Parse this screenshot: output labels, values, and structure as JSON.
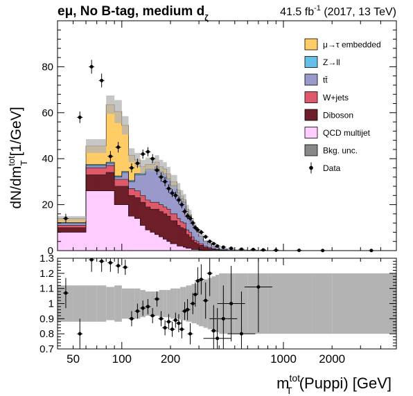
{
  "header": {
    "channel": "eμ, No B-tag, medium d",
    "channel_sub": "ζ",
    "lumi": "41.5 fb",
    "lumi_sup": "-1",
    "lumi_rest": " (2017, 13 TeV)"
  },
  "chart_data": [
    {
      "type": "area",
      "panel": "main (stacked histogram)",
      "ylabel_main": "dN/dm",
      "ylabel_sup": "tot",
      "ylabel_sub": "T",
      "ylabel_unit": " [1/GeV]",
      "xscale": "log",
      "xlim": [
        40,
        5000
      ],
      "ylim": [
        0,
        100
      ],
      "yticks": [
        0,
        20,
        40,
        60,
        80
      ],
      "legend_position": "top-right",
      "bin_edges": [
        40,
        50,
        60,
        70,
        80,
        90,
        100,
        110,
        120,
        130,
        140,
        150,
        160,
        170,
        180,
        190,
        200,
        210,
        220,
        230,
        240,
        250,
        260,
        270,
        280,
        290,
        300,
        320,
        340,
        360,
        380,
        400,
        450,
        500,
        600,
        700,
        800,
        1000,
        1500,
        2000,
        5000
      ],
      "series": [
        {
          "name": "QCD multijet",
          "color": "#ffccff",
          "values": [
            8,
            8,
            26,
            26,
            26,
            20,
            20,
            15,
            14,
            11,
            9,
            8,
            7,
            6,
            5,
            4,
            3,
            3,
            2,
            2,
            1.5,
            1,
            1,
            0.5,
            0.5,
            0.5,
            0.3,
            0.2,
            0.2,
            0.1,
            0.1,
            0,
            0,
            0,
            0,
            0,
            0,
            0,
            0,
            0
          ]
        },
        {
          "name": "Diboson",
          "color": "#6e1e28",
          "values": [
            2,
            2,
            7,
            7,
            8,
            8,
            8,
            9,
            9,
            10,
            10,
            10,
            11,
            11,
            11,
            11,
            10,
            10,
            9,
            8,
            8,
            6,
            5,
            4,
            3,
            2.5,
            2,
            1.2,
            0.8,
            0.5,
            0.3,
            0.2,
            0.1,
            0.1,
            0,
            0,
            0,
            0,
            0,
            0
          ]
        },
        {
          "name": "W+jets",
          "color": "#de5a6a",
          "values": [
            1,
            1,
            3,
            3,
            3,
            3,
            3,
            3,
            3,
            3,
            3,
            3,
            3,
            3,
            3,
            3,
            3,
            3,
            3,
            2.5,
            2.5,
            2,
            2,
            1.5,
            1,
            1,
            0.7,
            0.5,
            0.3,
            0.2,
            0.1,
            0.1,
            0,
            0,
            0,
            0,
            0,
            0,
            0,
            0
          ]
        },
        {
          "name": "tt̄",
          "color": "#9999cc",
          "values": [
            1,
            1,
            1,
            1,
            1,
            1,
            3,
            3,
            7,
            9,
            13,
            14,
            15,
            14,
            14,
            13,
            12,
            12,
            11,
            10,
            9,
            8,
            7,
            6,
            5,
            4,
            3,
            2,
            1.5,
            1,
            0.7,
            0.5,
            0.3,
            0.15,
            0.1,
            0.05,
            0.05,
            0,
            0,
            0
          ]
        },
        {
          "name": "Z→ll",
          "color": "#64c0e8",
          "values": [
            0.3,
            0.3,
            0.5,
            0.5,
            0.5,
            0.5,
            0.5,
            0.5,
            0.5,
            0.5,
            0.5,
            0.5,
            0.5,
            0.5,
            0.5,
            0.4,
            0.4,
            0.4,
            0.4,
            0.3,
            0.3,
            0.3,
            0.2,
            0.2,
            0.2,
            0.1,
            0.1,
            0.1,
            0.1,
            0,
            0,
            0,
            0,
            0,
            0,
            0,
            0,
            0,
            0,
            0
          ]
        },
        {
          "name": "μ→τ embedded",
          "color": "#ffcc66",
          "values": [
            1.7,
            1.7,
            8,
            8,
            25,
            28,
            20,
            11,
            6,
            3,
            2,
            2,
            2,
            2,
            2,
            2,
            1.5,
            1.5,
            1,
            1,
            0.8,
            0.7,
            0.5,
            0.4,
            0.3,
            0.2,
            0.2,
            0.1,
            0.1,
            0.05,
            0.05,
            0,
            0,
            0,
            0,
            0,
            0,
            0,
            0,
            0
          ]
        }
      ],
      "uncertainty": {
        "name": "Bkg. unc.",
        "color": "#b3b3b3",
        "values": [
          1,
          1,
          3,
          3,
          4,
          5,
          4,
          3,
          3,
          3,
          3,
          3,
          3,
          3,
          3,
          3,
          3,
          3,
          3,
          2.5,
          2.5,
          2,
          2,
          1.5,
          1.5,
          1,
          1,
          0.5,
          0.5,
          0.3,
          0.2,
          0.1,
          0.1,
          0.1,
          0.05,
          0.05,
          0.05,
          0.05,
          0.05,
          0.05
        ]
      },
      "data": {
        "name": "Data",
        "points": [
          [
            45,
            14,
            2
          ],
          [
            55,
            58,
            2.5
          ],
          [
            65,
            80,
            3
          ],
          [
            75,
            74,
            3
          ],
          [
            85,
            41,
            2.3
          ],
          [
            95,
            45,
            2.3
          ],
          [
            115,
            36,
            2
          ],
          [
            125,
            38,
            2
          ],
          [
            135,
            42,
            2
          ],
          [
            145,
            43,
            2
          ],
          [
            155,
            40,
            2
          ],
          [
            165,
            35,
            2
          ],
          [
            175,
            32,
            2
          ],
          [
            185,
            30,
            2
          ],
          [
            195,
            27,
            1.8
          ],
          [
            205,
            25,
            1.7
          ],
          [
            215,
            24,
            1.6
          ],
          [
            225,
            22,
            1.6
          ],
          [
            235,
            20,
            1.5
          ],
          [
            245,
            17,
            1.4
          ],
          [
            255,
            15,
            1.3
          ],
          [
            265,
            14,
            1.3
          ],
          [
            275,
            12,
            1.2
          ],
          [
            285,
            10,
            1.1
          ],
          [
            295,
            9,
            1.1
          ],
          [
            310,
            8,
            1
          ],
          [
            330,
            6,
            0.9
          ],
          [
            350,
            4,
            0.8
          ],
          [
            370,
            3,
            0.7
          ],
          [
            390,
            2,
            0.6
          ],
          [
            425,
            1.5,
            0.5
          ],
          [
            475,
            1,
            0.4
          ],
          [
            550,
            0.6,
            0.3
          ],
          [
            650,
            0.5,
            0.2
          ],
          [
            750,
            0.3,
            0.15
          ],
          [
            900,
            0.2,
            0.1
          ],
          [
            1250,
            0.1,
            0.05
          ],
          [
            1750,
            0.05,
            0.03
          ],
          [
            3500,
            0.04,
            0.02
          ]
        ]
      }
    },
    {
      "type": "scatter",
      "panel": "ratio",
      "xlabel_main": "m",
      "xlabel_sup": "tot",
      "xlabel_sub": "T",
      "xlabel_rest": " (Puppi) [GeV]",
      "xscale": "log",
      "xlim": [
        40,
        5000
      ],
      "ylim": [
        0.7,
        1.3
      ],
      "yticks": [
        0.7,
        0.8,
        0.9,
        1.0,
        1.1,
        1.2,
        1.3
      ],
      "ytick_labels": [
        "0.7",
        "0.8",
        "0.9",
        "1",
        "1.1",
        "1.2",
        "1.3"
      ],
      "xticks": [
        100,
        200,
        1000,
        2000
      ],
      "xtick_labels": [
        "100",
        "200",
        "1000",
        "2000"
      ],
      "xtick_extra": [
        {
          "value": 50,
          "label": "50"
        }
      ],
      "band_halfwidth": [
        0.12,
        0.12,
        0.12,
        0.12,
        0.11,
        0.12,
        0.1,
        0.1,
        0.1,
        0.09,
        0.08,
        0.08,
        0.08,
        0.09,
        0.09,
        0.09,
        0.1,
        0.1,
        0.1,
        0.11,
        0.11,
        0.12,
        0.12,
        0.13,
        0.13,
        0.14,
        0.15,
        0.16,
        0.17,
        0.18,
        0.19,
        0.2,
        0.2,
        0.2,
        0.2,
        0.2,
        0.2,
        0.2,
        0.2,
        0.2
      ],
      "points": [
        [
          45,
          1.07,
          0.1,
          0.04
        ],
        [
          55,
          0.8,
          0.1,
          0.01
        ],
        [
          65,
          1.29,
          0.08,
          0.02
        ],
        [
          75,
          1.28,
          0.07,
          0.02
        ],
        [
          85,
          1.27,
          0.06,
          0.02
        ],
        [
          95,
          1.25,
          0.05,
          0.02
        ],
        [
          105,
          1.24,
          0.05,
          0.02
        ],
        [
          115,
          0.9,
          0.05,
          0.02
        ],
        [
          125,
          0.95,
          0.05,
          0.02
        ],
        [
          135,
          0.97,
          0.05,
          0.02
        ],
        [
          145,
          0.98,
          0.05,
          0.02
        ],
        [
          155,
          0.92,
          0.05,
          0.02
        ],
        [
          165,
          1.03,
          0.05,
          0.02
        ],
        [
          175,
          0.9,
          0.05,
          0.02
        ],
        [
          185,
          0.84,
          0.05,
          0.02
        ],
        [
          195,
          0.88,
          0.05,
          0.02
        ],
        [
          205,
          0.83,
          0.05,
          0.02
        ],
        [
          215,
          0.89,
          0.05,
          0.03
        ],
        [
          225,
          0.87,
          0.06,
          0.03
        ],
        [
          235,
          0.83,
          0.06,
          0.03
        ],
        [
          245,
          0.95,
          0.06,
          0.03
        ],
        [
          255,
          0.96,
          0.07,
          0.03
        ],
        [
          265,
          0.8,
          0.07,
          0.03
        ],
        [
          275,
          1.0,
          0.07,
          0.03
        ],
        [
          285,
          1.06,
          0.08,
          0.03
        ],
        [
          295,
          1.15,
          0.09,
          0.04
        ],
        [
          310,
          1.16,
          0.1,
          0.04
        ],
        [
          330,
          1.02,
          0.12,
          0.05
        ],
        [
          350,
          1.2,
          0.15,
          0.05
        ],
        [
          370,
          0.82,
          0.17,
          0.05
        ],
        [
          390,
          0.77,
          0.2,
          0.06
        ],
        [
          425,
          0.9,
          0.22,
          0.06
        ],
        [
          475,
          1.0,
          0.25,
          0.07
        ],
        [
          550,
          0.8,
          0.28,
          0.07
        ],
        [
          700,
          1.11,
          0.3,
          0.06
        ]
      ]
    }
  ]
}
